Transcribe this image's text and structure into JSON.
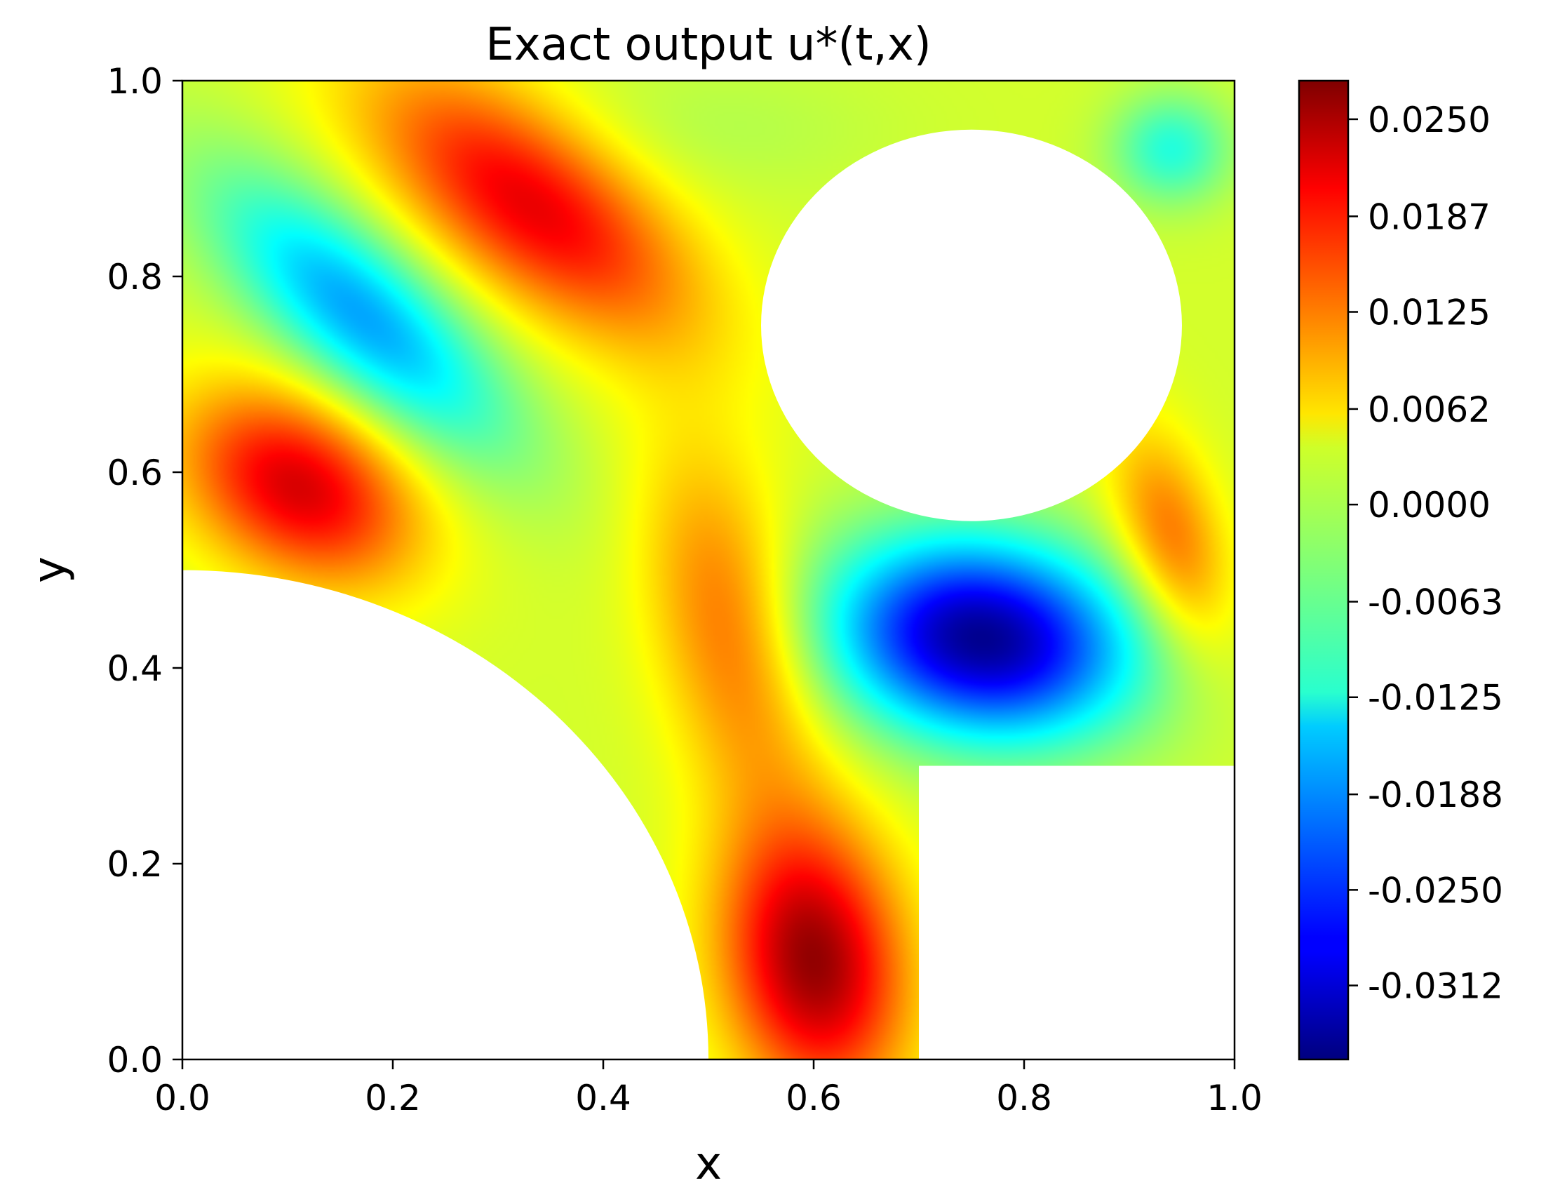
{
  "chart_data": {
    "type": "heatmap",
    "title": "Exact output u*(t,x)",
    "xlabel": "x",
    "ylabel": "y",
    "xlim": [
      0.0,
      1.0
    ],
    "ylim": [
      0.0,
      1.0
    ],
    "xticks": [
      "0.0",
      "0.2",
      "0.4",
      "0.6",
      "0.8",
      "1.0"
    ],
    "yticks": [
      "0.0",
      "0.2",
      "0.4",
      "0.6",
      "0.8",
      "1.0"
    ],
    "grid": false,
    "colormap": "jet",
    "colorbar": {
      "range": [
        -0.036,
        0.0275
      ],
      "tick_values": [
        0.025,
        0.0187,
        0.0125,
        0.0062,
        0.0,
        -0.0063,
        -0.0125,
        -0.0188,
        -0.025,
        -0.0312
      ],
      "tick_labels": [
        "0.0250",
        "0.0187",
        "0.0125",
        "0.0062",
        "0.0000",
        "-0.0063",
        "-0.0125",
        "-0.0188",
        "-0.0250",
        "-0.0312"
      ]
    },
    "domain": {
      "extent": [
        0.0,
        1.0,
        0.0,
        1.0
      ],
      "holes": [
        {
          "shape": "circle",
          "center": [
            0.0,
            0.0
          ],
          "radius": 0.5
        },
        {
          "shape": "circle",
          "center": [
            0.75,
            0.75
          ],
          "radius": 0.2
        },
        {
          "shape": "rect",
          "x": [
            0.7,
            1.0
          ],
          "y": [
            0.0,
            0.3
          ]
        }
      ]
    },
    "field_extrema": [
      {
        "x": 0.11,
        "y": 0.585,
        "value": 0.021,
        "sx": 0.085,
        "sy": 0.06,
        "angle": -35
      },
      {
        "x": 0.17,
        "y": 0.76,
        "value": -0.019,
        "sx": 0.13,
        "sy": 0.05,
        "angle": -45
      },
      {
        "x": 0.33,
        "y": 0.875,
        "value": 0.02,
        "sx": 0.13,
        "sy": 0.06,
        "angle": -40
      },
      {
        "x": 0.52,
        "y": 0.44,
        "value": 0.012,
        "sx": 0.05,
        "sy": 0.13,
        "angle": 12
      },
      {
        "x": 0.6,
        "y": 0.1,
        "value": 0.025,
        "sx": 0.06,
        "sy": 0.1,
        "angle": 8
      },
      {
        "x": 0.76,
        "y": 0.43,
        "value": -0.036,
        "sx": 0.1,
        "sy": 0.07,
        "angle": -10
      },
      {
        "x": 0.94,
        "y": 0.53,
        "value": 0.012,
        "sx": 0.035,
        "sy": 0.08,
        "angle": 15
      },
      {
        "x": 0.94,
        "y": 0.93,
        "value": -0.011,
        "sx": 0.04,
        "sy": 0.04,
        "angle": 0
      },
      {
        "x": 0.5,
        "y": 0.95,
        "value": -0.002,
        "sx": 0.12,
        "sy": 0.05,
        "angle": 0
      }
    ],
    "field_baseline": 0.001
  }
}
